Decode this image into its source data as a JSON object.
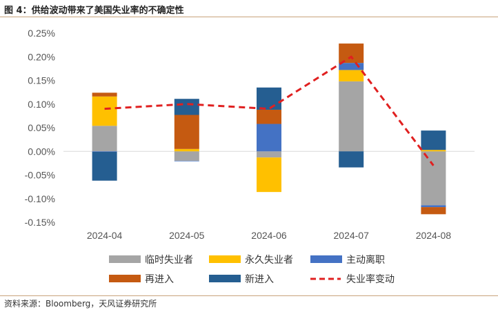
{
  "title": "图 4：供给波动带来了美国失业率的不确定性",
  "source": "资料来源：Bloomberg，天风证券研究所",
  "chart_data": {
    "type": "bar",
    "stacked": true,
    "title": "图 4：供给波动带来了美国失业率的不确定性",
    "xlabel": "",
    "ylabel": "",
    "ylim": [
      -0.15,
      0.25
    ],
    "y_ticks": [
      "0.25%",
      "0.20%",
      "0.15%",
      "0.10%",
      "0.05%",
      "0.00%",
      "-0.05%",
      "-0.10%",
      "-0.15%"
    ],
    "y_tick_values": [
      0.25,
      0.2,
      0.15,
      0.1,
      0.05,
      0.0,
      -0.05,
      -0.1,
      -0.15
    ],
    "categories": [
      "2024-04",
      "2024-05",
      "2024-06",
      "2024-07",
      "2024-08"
    ],
    "legend_position": "bottom",
    "series": [
      {
        "name": "临时失业者",
        "color": "#a5a5a5",
        "values": [
          0.054,
          -0.02,
          -0.013,
          0.148,
          -0.114
        ]
      },
      {
        "name": "永久失业者",
        "color": "#ffc000",
        "values": [
          0.062,
          0.005,
          -0.073,
          0.024,
          0.003
        ]
      },
      {
        "name": "主动离职",
        "color": "#4472c4",
        "values": [
          -0.001,
          -0.001,
          0.058,
          0.015,
          -0.004
        ]
      },
      {
        "name": "再进入",
        "color": "#c55a11",
        "values": [
          0.008,
          0.072,
          0.03,
          0.041,
          -0.015
        ]
      },
      {
        "name": "新进入",
        "color": "#255e91",
        "values": [
          -0.061,
          0.034,
          0.047,
          -0.034,
          0.041
        ]
      }
    ],
    "line": {
      "name": "失业率变动",
      "color": "#e02020",
      "values": [
        0.09,
        0.1,
        0.09,
        0.2,
        -0.03
      ]
    }
  }
}
